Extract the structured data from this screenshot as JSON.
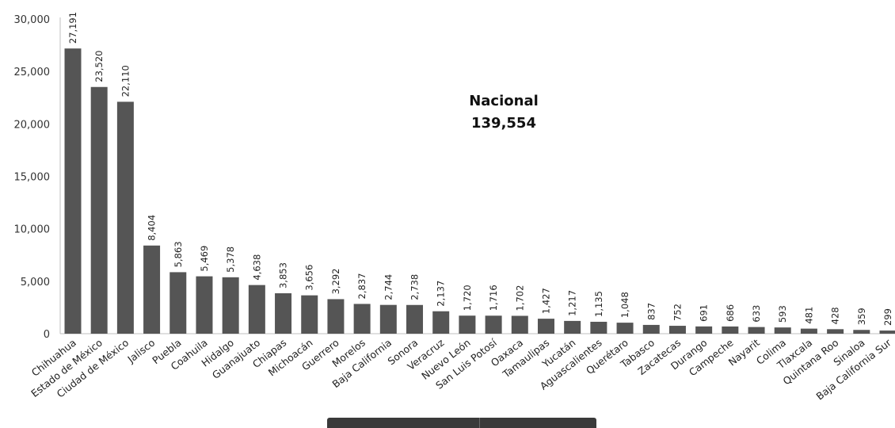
{
  "chart_data": {
    "type": "bar",
    "categories": [
      "Chihuahua",
      "Estado de México",
      "Ciudad de México",
      "Jalisco",
      "Puebla",
      "Coahuila",
      "Hidalgo",
      "Guanajuato",
      "Chiapas",
      "Michoacán",
      "Guerrero",
      "Morelos",
      "Baja California",
      "Sonora",
      "Veracruz",
      "Nuevo León",
      "San Luis Potosí",
      "Oaxaca",
      "Tamaulipas",
      "Yucatán",
      "Aguascalientes",
      "Querétaro",
      "Tabasco",
      "Zacatecas",
      "Durango",
      "Campeche",
      "Nayarit",
      "Colima",
      "Tlaxcala",
      "Quintana Roo",
      "Sinaloa",
      "Baja California Sur"
    ],
    "values": [
      27191,
      23520,
      22110,
      8404,
      5863,
      5469,
      5378,
      4638,
      3853,
      3656,
      3292,
      2837,
      2744,
      2738,
      2137,
      1720,
      1716,
      1702,
      1427,
      1217,
      1135,
      1048,
      837,
      752,
      691,
      686,
      633,
      593,
      481,
      428,
      359,
      299
    ],
    "value_labels": [
      "27,191",
      "23,520",
      "22,110",
      "8,404",
      "5,863",
      "5,469",
      "5,378",
      "4,638",
      "3,853",
      "3,656",
      "3,292",
      "2,837",
      "2,744",
      "2,738",
      "2,137",
      "1,720",
      "1,716",
      "1,702",
      "1,427",
      "1,217",
      "1,135",
      "1,048",
      "837",
      "752",
      "691",
      "686",
      "633",
      "593",
      "481",
      "428",
      "359",
      "299"
    ],
    "ylim": [
      0,
      30000
    ],
    "yticks": [
      0,
      5000,
      10000,
      15000,
      20000,
      25000,
      30000
    ],
    "ytick_labels": [
      "0",
      "5,000",
      "10,000",
      "15,000",
      "20,000",
      "25,000",
      "30,000"
    ],
    "grid": false,
    "bar_color": "#555555",
    "annotation": {
      "line1": "Nacional",
      "line2": "139,554"
    }
  }
}
